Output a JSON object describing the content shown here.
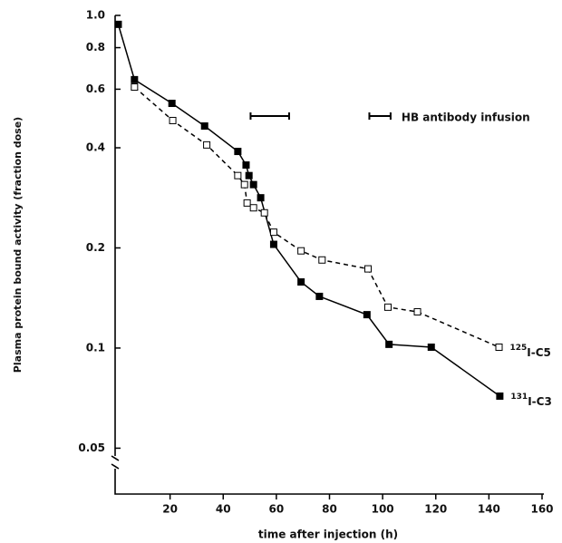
{
  "chart_data": {
    "type": "line",
    "y_label": "Plasma protein bound activity (fraction dose)",
    "x_label": "time after injection (h)",
    "xlim": [
      0,
      160
    ],
    "xticks": [
      20,
      40,
      60,
      80,
      100,
      120,
      140,
      160
    ],
    "ylim": [
      0.0364,
      1.0
    ],
    "log_y": true,
    "yticks": [
      {
        "value": 1,
        "label": "1.0"
      },
      0.8,
      0.6,
      0.4,
      0.2,
      0.1,
      0.05
    ],
    "infusion": [
      50.3,
      64.8
    ],
    "legend_infusion": [
      95,
      103
    ],
    "legend_text": "HB antibody infusion",
    "series": [
      {
        "name": "I-C3",
        "isotope": "131",
        "color": "#000000",
        "dashed": false,
        "filled": true,
        "x": [
          0.5,
          6.6,
          20.7,
          33,
          45.5,
          48.6,
          49.7,
          51.4,
          54.1,
          59,
          69.3,
          76.2,
          94.1,
          102.4,
          118.3,
          144.1
        ],
        "values": [
          0.94,
          0.641,
          0.544,
          0.465,
          0.39,
          0.355,
          0.33,
          0.31,
          0.283,
          0.205,
          0.158,
          0.143,
          0.126,
          0.1026,
          0.1006,
          0.0717
        ]
      },
      {
        "name": "I-C5",
        "isotope": "125",
        "color": "#000000",
        "dashed": true,
        "filled": false,
        "x": [
          6.6,
          21,
          33.8,
          45.5,
          48,
          49,
          51.4,
          55.5,
          59,
          69.3,
          77.2,
          94.5,
          102,
          113.1,
          143.8
        ],
        "values": [
          0.609,
          0.483,
          0.408,
          0.33,
          0.31,
          0.273,
          0.264,
          0.255,
          0.223,
          0.196,
          0.184,
          0.173,
          0.1327,
          0.1285,
          0.1006
        ]
      }
    ]
  }
}
